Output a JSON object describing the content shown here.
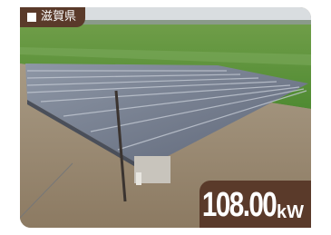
{
  "location_tag": "滋賀県",
  "capacity": {
    "value": "108.00",
    "unit": "kW"
  }
}
